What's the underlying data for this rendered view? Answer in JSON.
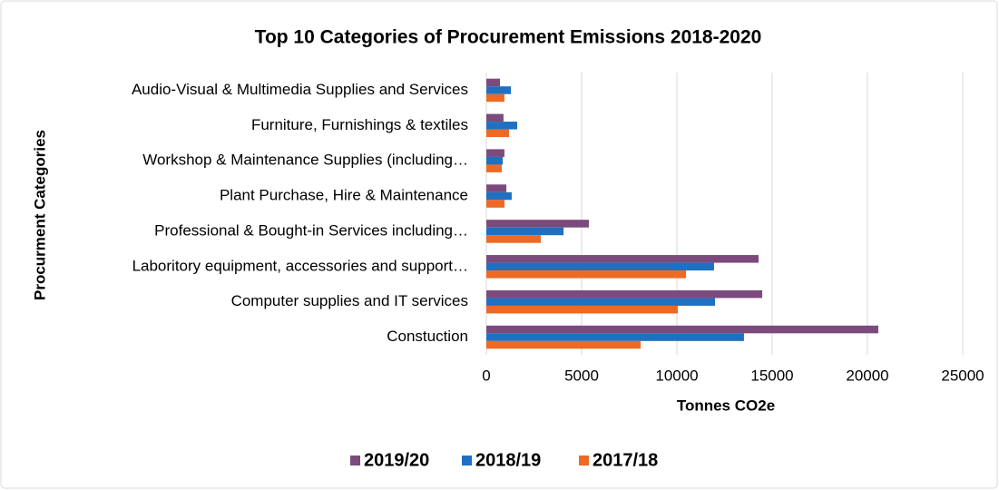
{
  "chart_data": {
    "type": "hbar",
    "title": "Top 10 Categories of Procurement Emissions 2018-2020",
    "x_label": "Tonnes CO2e",
    "y_label": "Procurment Categories",
    "categories": [
      "Audio-Visual & Multimedia Supplies and Services",
      "Furniture, Furnishings & textiles",
      "Workshop & Maintenance Supplies (including…",
      "Plant Purchase, Hire & Maintenance",
      "Professional & Bought-in Services including…",
      "Laboritory equipment, accessories and support…",
      "Computer supplies and IT services",
      "Constuction"
    ],
    "series": [
      {
        "name": "2019/20",
        "color": "#7b4b7d",
        "values": [
          714,
          900,
          950,
          1050,
          5380,
          14290,
          14480,
          20570
        ]
      },
      {
        "name": "2018/19",
        "color": "#1f70c1",
        "values": [
          1290,
          1620,
          860,
          1330,
          4050,
          11950,
          12000,
          13520
        ]
      },
      {
        "name": "2017/18",
        "color": "#ec6a24",
        "values": [
          950,
          1190,
          810,
          950,
          2860,
          10480,
          10050,
          8100
        ]
      }
    ],
    "xlim": [
      0,
      25000
    ],
    "xticks": [
      0,
      5000,
      10000,
      15000,
      20000,
      25000
    ],
    "grid": true,
    "legend": "bottom"
  }
}
